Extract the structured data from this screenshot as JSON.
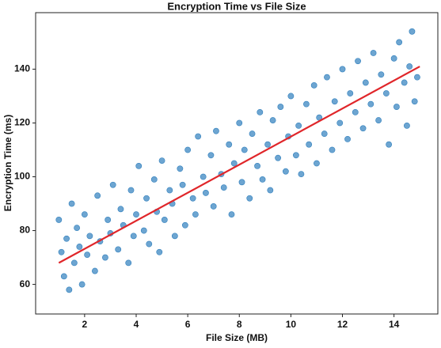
{
  "chart_data": {
    "type": "scatter",
    "title": "Encryption Time vs File Size",
    "x_label": "File Size (MB)",
    "y_label": "Encryption Time (ms)",
    "xlim": [
      0.1,
      15.7
    ],
    "ylim": [
      49,
      161
    ],
    "xticks": [
      2,
      4,
      6,
      8,
      10,
      12,
      14
    ],
    "yticks": [
      60,
      80,
      100,
      120,
      140
    ],
    "grid": false,
    "series": [
      {
        "color": "#2f7fbd",
        "x": [
          1.0,
          1.1,
          1.2,
          1.3,
          1.4,
          1.5,
          1.6,
          1.7,
          1.8,
          1.9,
          2.0,
          2.1,
          2.2,
          2.4,
          2.5,
          2.6,
          2.8,
          2.9,
          3.0,
          3.1,
          3.3,
          3.4,
          3.5,
          3.7,
          3.8,
          3.9,
          4.0,
          4.1,
          4.3,
          4.4,
          4.5,
          4.7,
          4.8,
          4.9,
          5.0,
          5.1,
          5.3,
          5.4,
          5.5,
          5.7,
          5.8,
          5.9,
          6.0,
          6.2,
          6.3,
          6.4,
          6.6,
          6.7,
          6.9,
          7.0,
          7.1,
          7.3,
          7.4,
          7.6,
          7.7,
          7.8,
          8.0,
          8.1,
          8.2,
          8.4,
          8.5,
          8.7,
          8.8,
          8.9,
          9.1,
          9.2,
          9.3,
          9.5,
          9.6,
          9.8,
          9.9,
          10.0,
          10.2,
          10.3,
          10.4,
          10.6,
          10.7,
          10.9,
          11.0,
          11.1,
          11.3,
          11.4,
          11.6,
          11.7,
          11.9,
          12.0,
          12.2,
          12.3,
          12.5,
          12.6,
          12.8,
          12.9,
          13.1,
          13.2,
          13.4,
          13.5,
          13.7,
          13.8,
          14.0,
          14.1,
          14.2,
          14.4,
          14.5,
          14.6,
          14.7,
          14.8,
          14.9
        ],
        "values": [
          84,
          72,
          63,
          77,
          58,
          90,
          68,
          81,
          74,
          60,
          86,
          71,
          78,
          65,
          93,
          76,
          70,
          84,
          79,
          97,
          73,
          88,
          82,
          68,
          95,
          78,
          86,
          104,
          80,
          92,
          75,
          99,
          87,
          72,
          106,
          84,
          95,
          90,
          78,
          103,
          97,
          82,
          110,
          92,
          86,
          115,
          100,
          94,
          108,
          89,
          117,
          101,
          96,
          112,
          86,
          105,
          120,
          98,
          110,
          92,
          116,
          104,
          124,
          99,
          112,
          95,
          121,
          107,
          126,
          102,
          115,
          130,
          108,
          119,
          101,
          127,
          112,
          134,
          105,
          122,
          116,
          137,
          110,
          128,
          120,
          140,
          114,
          131,
          124,
          143,
          118,
          135,
          127,
          146,
          121,
          138,
          131,
          112,
          144,
          126,
          150,
          135,
          119,
          141,
          154,
          128,
          137
        ]
      },
      {
        "type": "line",
        "color": "#e0262a",
        "x": [
          1,
          15
        ],
        "values": [
          68,
          141
        ]
      }
    ]
  }
}
